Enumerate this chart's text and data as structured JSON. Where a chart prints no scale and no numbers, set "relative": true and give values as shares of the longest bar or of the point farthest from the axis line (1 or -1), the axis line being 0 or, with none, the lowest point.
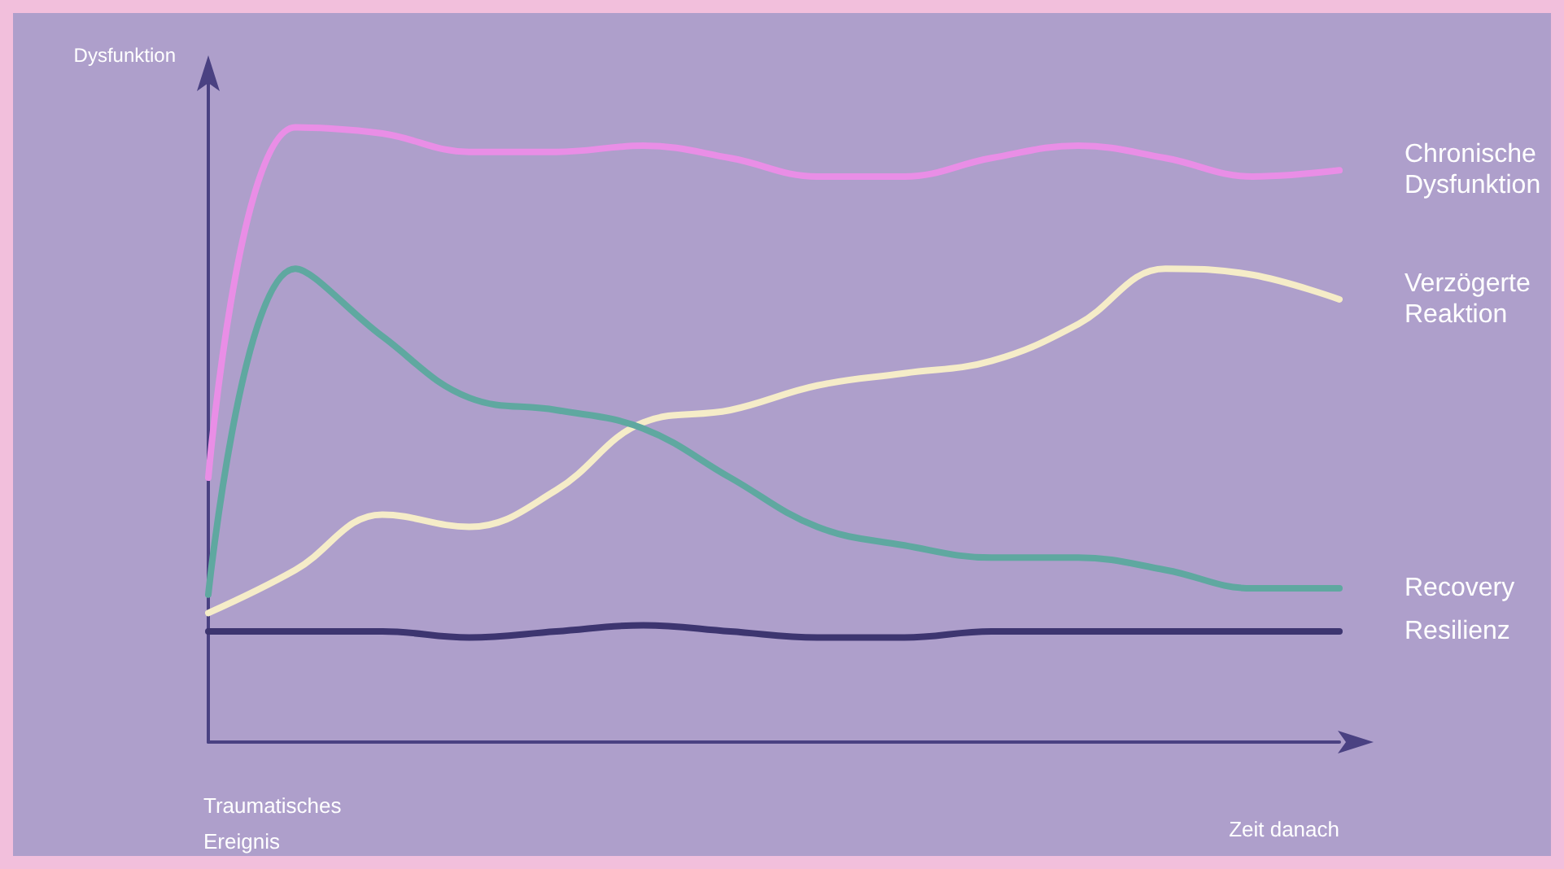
{
  "chart_data": {
    "type": "line",
    "relative": true,
    "ylabel": "Dysfunktion",
    "xlabel": "Zeit danach",
    "annotations": [
      "Traumatisches Ereignis"
    ],
    "legend": false,
    "grid": false,
    "marker": "none",
    "line_style": "solid",
    "categories": [
      null,
      null,
      null,
      null,
      null,
      null,
      null,
      null,
      null,
      null,
      null,
      null,
      null,
      null
    ],
    "series": [
      {
        "name": "Chronische Dysfunktion",
        "color": "#e98ee6",
        "values": [
          0.43,
          1,
          0.99,
          0.96,
          0.96,
          0.97,
          0.95,
          0.92,
          0.92,
          0.95,
          0.97,
          0.95,
          0.92,
          0.93
        ]
      },
      {
        "name": "Verzögerte Reaktion",
        "color": "#f5ecc8",
        "values": [
          0.21,
          0.28,
          0.37,
          0.35,
          0.41,
          0.52,
          0.54,
          0.58,
          0.6,
          0.62,
          0.68,
          0.77,
          0.76,
          0.72
        ]
      },
      {
        "name": "Recovery",
        "color": "#5fa8a0",
        "values": [
          0.24,
          0.77,
          0.66,
          0.56,
          0.54,
          0.51,
          0.43,
          0.35,
          0.32,
          0.3,
          0.3,
          0.28,
          0.25,
          0.25
        ]
      },
      {
        "name": "Resilienz",
        "color": "#3d3570",
        "values": [
          0.18,
          0.18,
          0.18,
          0.17,
          0.18,
          0.19,
          0.18,
          0.17,
          0.17,
          0.18,
          0.18,
          0.18,
          0.18,
          0.18
        ]
      }
    ]
  }
}
